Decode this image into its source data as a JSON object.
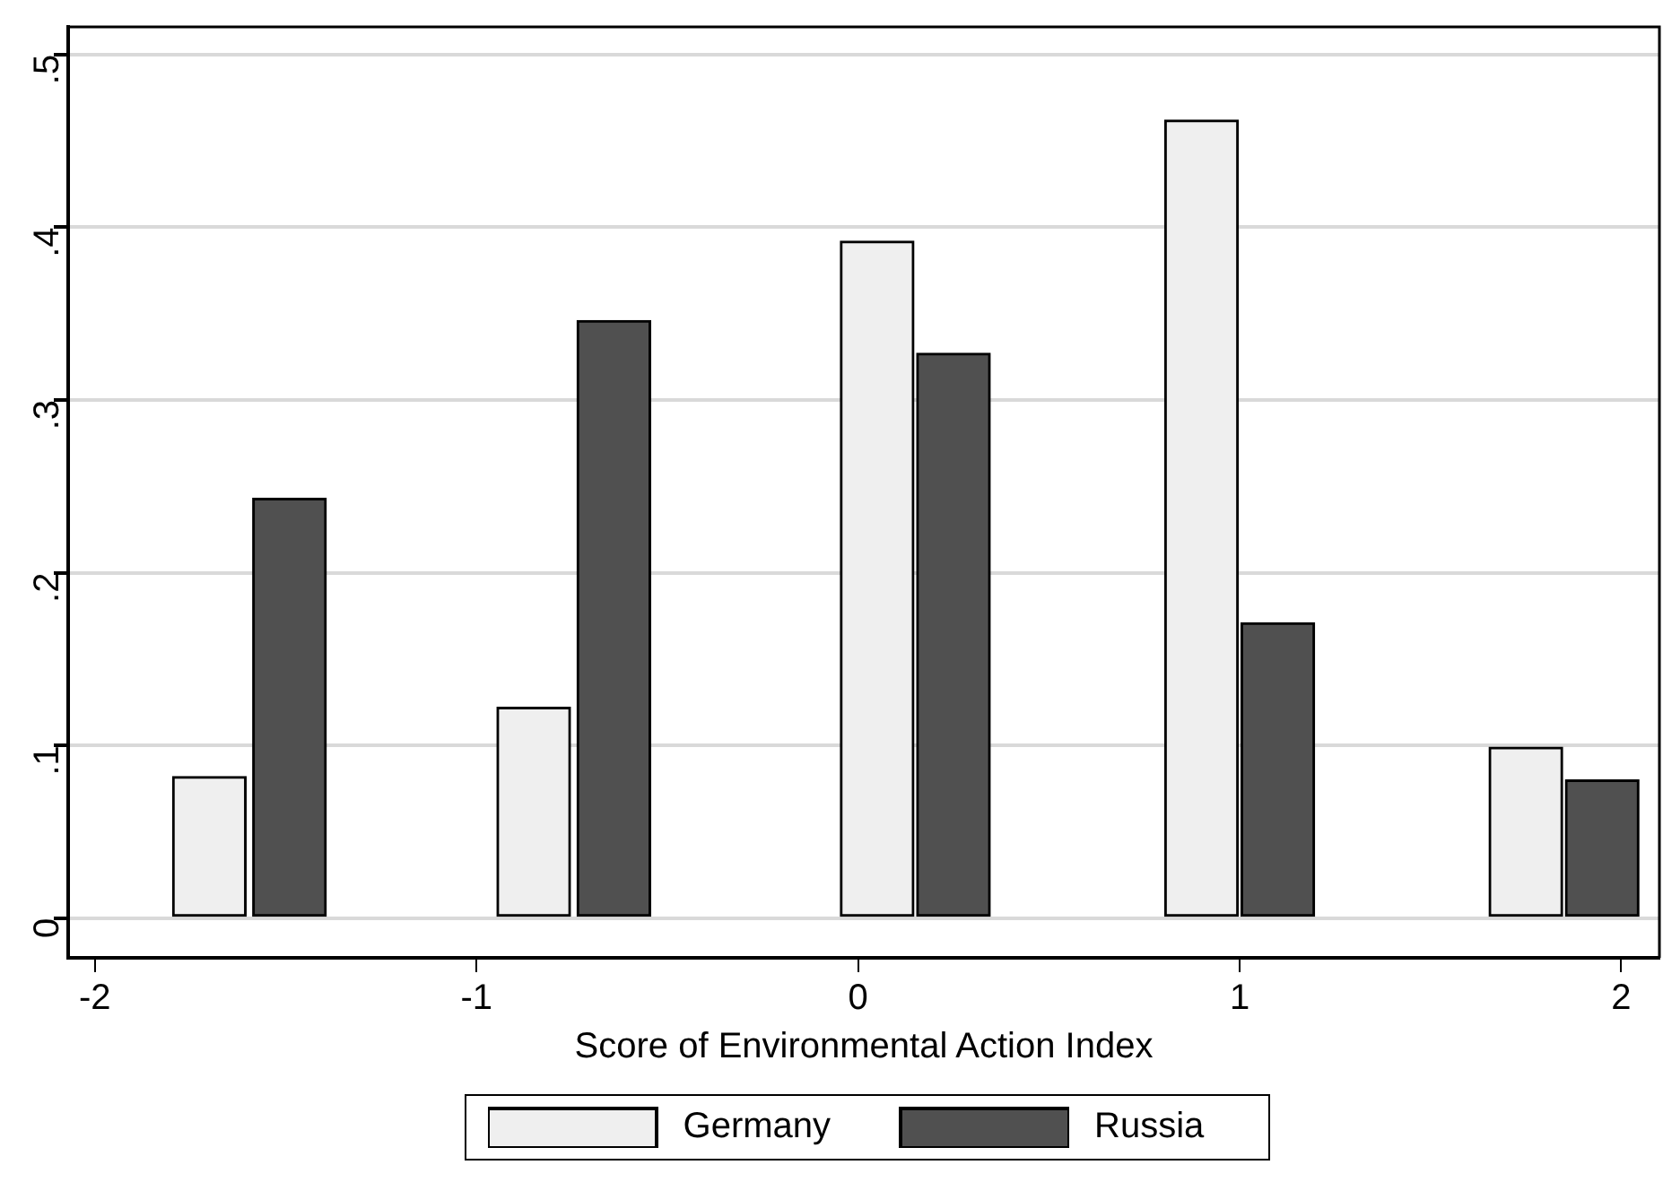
{
  "chart_data": {
    "type": "bar",
    "xlabel": "Score of Environmental Action Index",
    "series": [
      {
        "name": "Germany",
        "color": "#efefef",
        "x": [
          -1.7,
          -0.85,
          0.05,
          0.9,
          1.75
        ],
        "values": [
          0.082,
          0.122,
          0.392,
          0.462,
          0.099
        ]
      },
      {
        "name": "Russia",
        "color": "#505050",
        "x": [
          -1.49,
          -0.64,
          0.25,
          1.1,
          1.95
        ],
        "values": [
          0.243,
          0.346,
          0.327,
          0.171,
          0.08
        ]
      }
    ],
    "xlim": [
      -2.07,
      2.1
    ],
    "xticks": [
      -2,
      -1,
      0,
      1,
      2
    ],
    "ylim": [
      -0.023,
      0.516
    ],
    "yticks": [
      {
        "value": 0,
        "label": "0"
      },
      {
        "value": 0.1,
        "label": ".1"
      },
      {
        "value": 0.2,
        "label": ".2"
      },
      {
        "value": 0.3,
        "label": ".3"
      },
      {
        "value": 0.4,
        "label": ".4"
      },
      {
        "value": 0.5,
        "label": ".5"
      }
    ],
    "grid": "y",
    "legend": "bottom"
  }
}
